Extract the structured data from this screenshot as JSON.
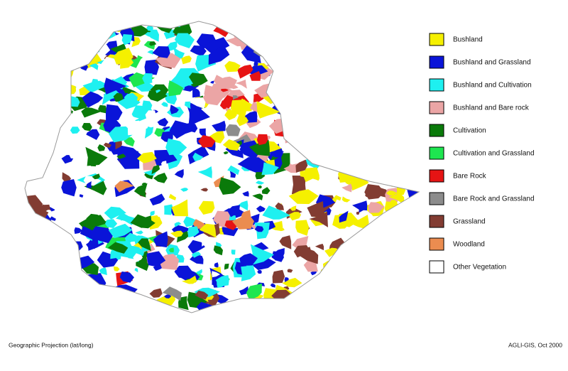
{
  "legend": {
    "items": [
      {
        "label": "Bushland",
        "color": "#f5f000"
      },
      {
        "label": "Bushland and Grassland",
        "color": "#0a14d8"
      },
      {
        "label": "Bushland and Cultivation",
        "color": "#1ef0f0"
      },
      {
        "label": "Bushland and Bare rock",
        "color": "#eba5a5"
      },
      {
        "label": "Cultivation",
        "color": "#0a7a0a"
      },
      {
        "label": "Cultivation and Grassland",
        "color": "#1ee650"
      },
      {
        "label": "Bare Rock",
        "color": "#e61414"
      },
      {
        "label": "Bare Rock and Grassland",
        "color": "#8c8c8c"
      },
      {
        "label": "Grassland",
        "color": "#823c32"
      },
      {
        "label": "Woodland",
        "color": "#eb8c50"
      },
      {
        "label": "Other Vegetation",
        "color": "#ffffff"
      }
    ]
  },
  "footer": {
    "projection": "Geographic Projection (lat/long)",
    "credit": "AGLI-GIS, Oct 2000"
  }
}
